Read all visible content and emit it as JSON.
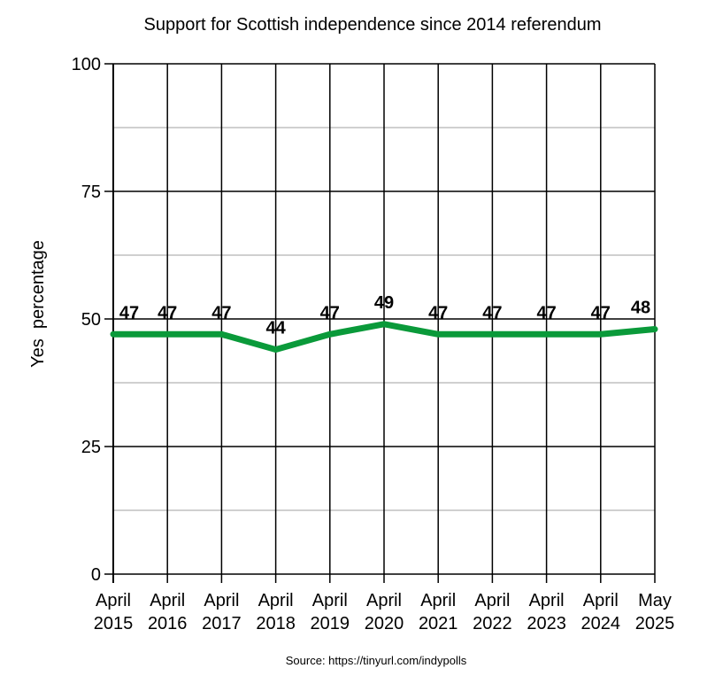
{
  "chart_data": {
    "type": "line",
    "title": "Support for Scottish independence since 2014 referendum",
    "xlabel": "",
    "ylabel": "Yes  percentage",
    "source": "Source: https://tinyurl.com/indypolls",
    "ylim": [
      0,
      100
    ],
    "yticks": [
      0,
      25,
      50,
      75,
      100
    ],
    "minor_yticks": [
      12.5,
      37.5,
      62.5,
      87.5
    ],
    "grid": true,
    "categories": [
      [
        "April",
        "2015"
      ],
      [
        "April",
        "2016"
      ],
      [
        "April",
        "2017"
      ],
      [
        "April",
        "2018"
      ],
      [
        "April",
        "2019"
      ],
      [
        "April",
        "2020"
      ],
      [
        "April",
        "2021"
      ],
      [
        "April",
        "2022"
      ],
      [
        "April",
        "2023"
      ],
      [
        "April",
        "2024"
      ],
      [
        "May",
        "2025"
      ]
    ],
    "series": [
      {
        "name": "Yes",
        "color": "#0a9a3a",
        "values": [
          47,
          47,
          47,
          44,
          47,
          49,
          47,
          47,
          47,
          47,
          48
        ]
      }
    ]
  }
}
